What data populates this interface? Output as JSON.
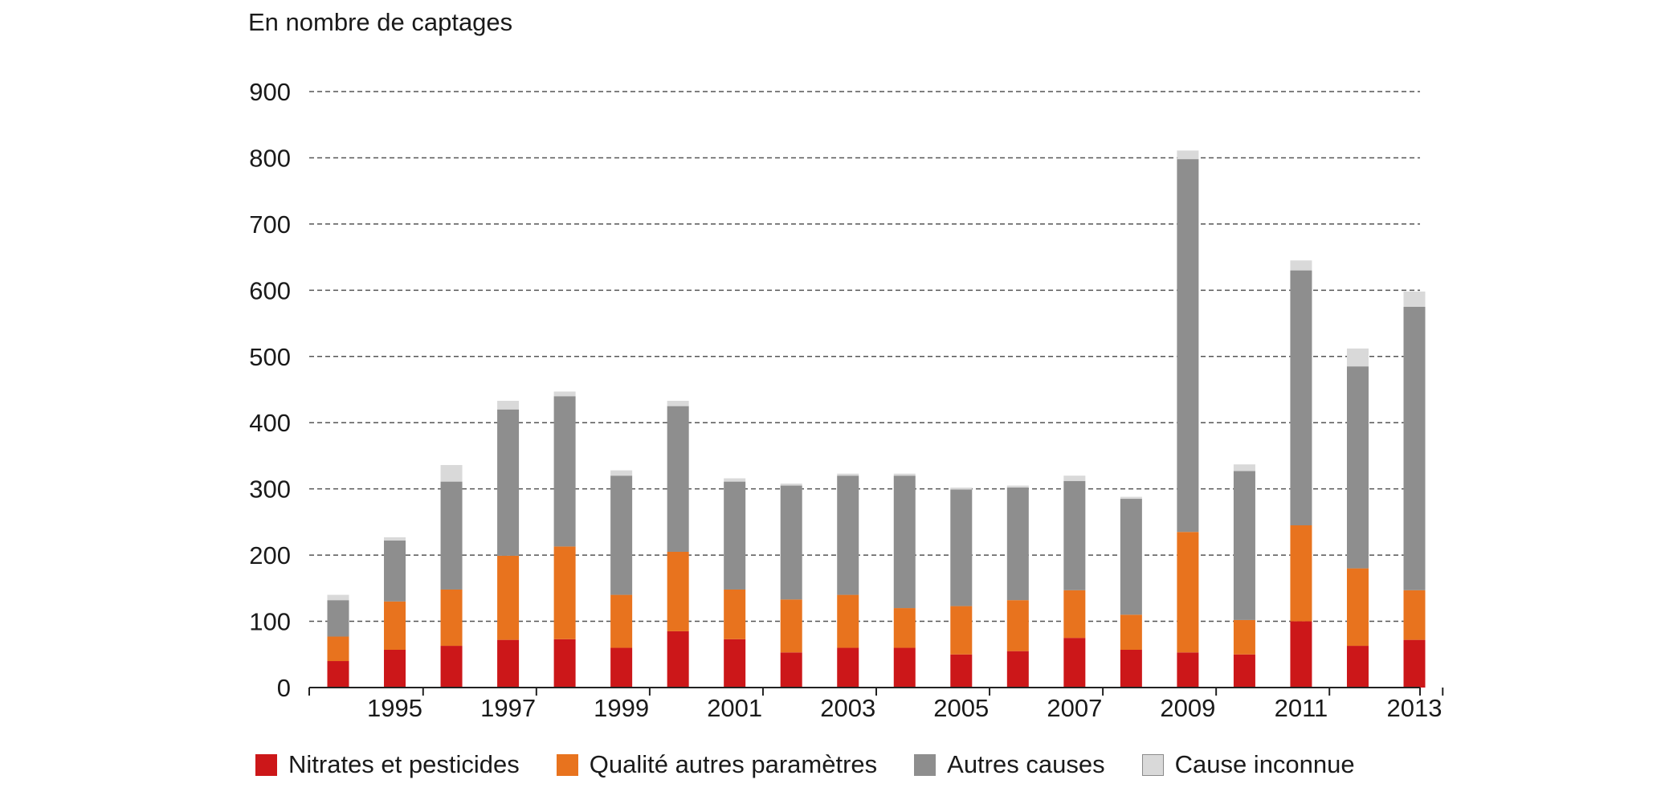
{
  "chart_data": {
    "type": "bar",
    "stacked": true,
    "ylabel": "En nombre de captages",
    "xlabel": "",
    "ylim": [
      0,
      900
    ],
    "yticks": [
      "0",
      "100",
      "200",
      "300",
      "400",
      "500",
      "600",
      "700",
      "800",
      "900"
    ],
    "grid": true,
    "legend_position": "bottom",
    "categories": [
      "1994",
      "1995",
      "1996",
      "1997",
      "1998",
      "1999",
      "2000",
      "2001",
      "2002",
      "2003",
      "2004",
      "2005",
      "2006",
      "2007",
      "2008",
      "2009",
      "2010",
      "2011",
      "2012",
      "2013"
    ],
    "xtick_labels": [
      "1995",
      "1997",
      "1999",
      "2001",
      "2003",
      "2005",
      "2007",
      "2009",
      "2011",
      "2013"
    ],
    "series": [
      {
        "name": "Nitrates et pesticides",
        "color": "#cc1719",
        "values": [
          40,
          57,
          63,
          72,
          73,
          60,
          85,
          73,
          53,
          60,
          60,
          50,
          55,
          75,
          57,
          53,
          50,
          100,
          63,
          72
        ]
      },
      {
        "name": "Qualité autres paramètres",
        "color": "#e8731e",
        "values": [
          37,
          73,
          85,
          127,
          140,
          80,
          120,
          75,
          80,
          80,
          60,
          73,
          77,
          72,
          53,
          182,
          52,
          145,
          117,
          75
        ]
      },
      {
        "name": "Autres causes",
        "color": "#8e8e8e",
        "values": [
          55,
          92,
          163,
          221,
          227,
          180,
          220,
          163,
          172,
          180,
          200,
          176,
          170,
          165,
          175,
          563,
          225,
          385,
          305,
          428
        ]
      },
      {
        "name": "Cause inconnue",
        "color": "#d9d9d9",
        "values": [
          8,
          5,
          25,
          13,
          7,
          8,
          8,
          5,
          3,
          3,
          3,
          3,
          3,
          8,
          3,
          13,
          10,
          15,
          27,
          23
        ]
      }
    ]
  }
}
